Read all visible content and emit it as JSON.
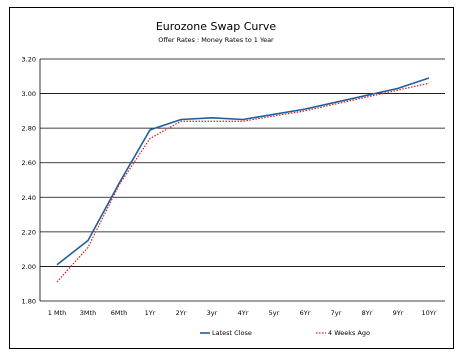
{
  "chart_data": {
    "type": "line",
    "title": "Eurozone Swap Curve",
    "subtitle": "Offer Rates : Money Rates to 1 Year",
    "xlabel": "",
    "ylabel": "",
    "categories": [
      "1 Mth",
      "3Mth",
      "6Mth",
      "1Yr",
      "2Yr",
      "3yr",
      "4Yr",
      "5yr",
      "6Yr",
      "7yr",
      "8Yr",
      "9Yr",
      "10Yr"
    ],
    "y_ticks": [
      "1.80",
      "2.00",
      "2.20",
      "2.40",
      "2.60",
      "2.80",
      "3.00",
      "3.20"
    ],
    "ylim": [
      1.8,
      3.2
    ],
    "grid": true,
    "legend_position": "bottom",
    "series": [
      {
        "name": "Latest Close",
        "color": "#1f5fa0",
        "style": "solid",
        "values": [
          2.01,
          2.15,
          2.48,
          2.79,
          2.85,
          2.86,
          2.85,
          2.88,
          2.91,
          2.95,
          2.99,
          3.03,
          3.09
        ]
      },
      {
        "name": "4 Weeks Ago",
        "color": "#d81b1b",
        "style": "dotted",
        "values": [
          1.91,
          2.11,
          2.47,
          2.74,
          2.84,
          2.84,
          2.84,
          2.87,
          2.9,
          2.94,
          2.98,
          3.02,
          3.06
        ]
      }
    ]
  }
}
